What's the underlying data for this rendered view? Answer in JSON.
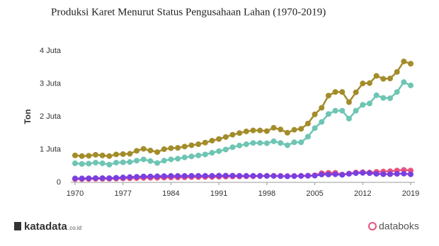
{
  "chart_data": {
    "type": "line",
    "title": "Produksi Karet Menurut Status Pengusahaan Lahan (1970-2019)",
    "y_label": "Ton",
    "x": [
      1970,
      1971,
      1972,
      1973,
      1974,
      1975,
      1976,
      1977,
      1978,
      1979,
      1980,
      1981,
      1982,
      1983,
      1984,
      1985,
      1986,
      1987,
      1988,
      1989,
      1990,
      1991,
      1992,
      1993,
      1994,
      1995,
      1996,
      1997,
      1998,
      1999,
      2000,
      2001,
      2002,
      2003,
      2004,
      2005,
      2006,
      2007,
      2008,
      2009,
      2010,
      2011,
      2012,
      2013,
      2014,
      2015,
      2016,
      2017,
      2018,
      2019
    ],
    "xlim": [
      1970,
      2019
    ],
    "xticks": [
      1970,
      1977,
      1984,
      1991,
      1998,
      2005,
      2012,
      2019
    ],
    "ylim": [
      0,
      4000000
    ],
    "yticks": [
      0,
      {
        "value": 1000000,
        "label": "1 Juta"
      },
      {
        "value": 2000000,
        "label": "2 Juta"
      },
      {
        "value": 3000000,
        "label": "3 Juta"
      },
      {
        "value": 4000000,
        "label": "4 Juta"
      }
    ],
    "grid": false,
    "series": [
      {
        "color": "#a38c2a",
        "values": [
          820000,
          800000,
          810000,
          840000,
          820000,
          800000,
          850000,
          860000,
          870000,
          960000,
          1020000,
          970000,
          920000,
          1010000,
          1040000,
          1050000,
          1090000,
          1130000,
          1160000,
          1210000,
          1270000,
          1320000,
          1380000,
          1450000,
          1500000,
          1550000,
          1580000,
          1580000,
          1560000,
          1660000,
          1610000,
          1510000,
          1600000,
          1630000,
          1790000,
          2070000,
          2270000,
          2640000,
          2750000,
          2750000,
          2440000,
          2740000,
          3010000,
          3020000,
          3240000,
          3150000,
          3160000,
          3360000,
          3680000,
          3610000
        ]
      },
      {
        "color": "#6ec5b3",
        "values": [
          580000,
          560000,
          570000,
          600000,
          580000,
          540000,
          600000,
          610000,
          620000,
          660000,
          700000,
          650000,
          590000,
          660000,
          700000,
          720000,
          760000,
          790000,
          820000,
          850000,
          900000,
          950000,
          1000000,
          1070000,
          1120000,
          1160000,
          1200000,
          1200000,
          1190000,
          1250000,
          1200000,
          1130000,
          1220000,
          1220000,
          1390000,
          1650000,
          1840000,
          2080000,
          2180000,
          2180000,
          1940000,
          2180000,
          2360000,
          2400000,
          2650000,
          2570000,
          2560000,
          2750000,
          3050000,
          2950000
        ]
      },
      {
        "color": "#e8517e",
        "values": [
          100000,
          100000,
          105000,
          110000,
          110000,
          110000,
          115000,
          120000,
          125000,
          130000,
          135000,
          140000,
          140000,
          145000,
          150000,
          150000,
          155000,
          160000,
          160000,
          165000,
          165000,
          170000,
          175000,
          180000,
          180000,
          185000,
          185000,
          190000,
          200000,
          200000,
          195000,
          190000,
          195000,
          200000,
          205000,
          215000,
          280000,
          290000,
          290000,
          240000,
          270000,
          300000,
          310000,
          300000,
          320000,
          330000,
          340000,
          360000,
          380000,
          360000
        ]
      },
      {
        "color": "#7a3fe0",
        "values": [
          120000,
          120000,
          125000,
          130000,
          130000,
          130000,
          140000,
          150000,
          160000,
          170000,
          180000,
          180000,
          185000,
          190000,
          195000,
          195000,
          195000,
          200000,
          200000,
          200000,
          200000,
          205000,
          205000,
          205000,
          200000,
          200000,
          200000,
          200000,
          195000,
          195000,
          190000,
          185000,
          190000,
          195000,
          200000,
          205000,
          240000,
          240000,
          245000,
          230000,
          260000,
          280000,
          290000,
          280000,
          260000,
          250000,
          250000,
          260000,
          265000,
          245000
        ]
      }
    ]
  },
  "branding": {
    "left": "katadata",
    "left_suffix": ".co.id",
    "right": "databoks"
  }
}
